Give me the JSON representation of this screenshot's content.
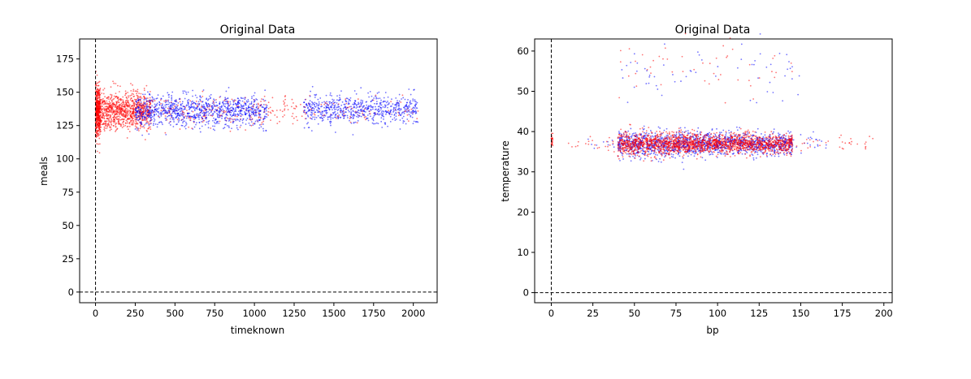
{
  "chart_data": [
    {
      "type": "scatter",
      "title": "Original Data",
      "xlabel": "timeknown",
      "ylabel": "meals",
      "xlim": [
        -100,
        2150
      ],
      "ylim": [
        -8,
        190
      ],
      "xticks": [
        "0",
        "250",
        "500",
        "750",
        "1000",
        "1250",
        "1500",
        "1750",
        "2000"
      ],
      "yticks": [
        "0",
        "25",
        "50",
        "75",
        "100",
        "125",
        "150",
        "175"
      ],
      "reference_lines": {
        "x": 0,
        "y": 0,
        "style": "dashed",
        "color": "#000000"
      },
      "series": [
        {
          "color": "#ff0000",
          "clusters": [
            {
              "x_range": [
                0,
                30
              ],
              "y_center": 136,
              "y_spread": 9,
              "count": 500
            },
            {
              "x_range": [
                30,
                350
              ],
              "y_center": 136,
              "y_spread": 7,
              "count": 900
            },
            {
              "x_range": [
                350,
                1100
              ],
              "y_center": 136,
              "y_spread": 6,
              "count": 200
            },
            {
              "x_range": [
                1100,
                1300
              ],
              "y_center": 136,
              "y_spread": 6,
              "count": 40
            },
            {
              "x_range": [
                1300,
                2030
              ],
              "y_center": 137,
              "y_spread": 5,
              "count": 80
            }
          ]
        },
        {
          "color": "#0000ff",
          "clusters": [
            {
              "x_range": [
                250,
                1080
              ],
              "y_center": 136,
              "y_spread": 6,
              "count": 1000
            },
            {
              "x_range": [
                1310,
                2030
              ],
              "y_center": 137,
              "y_spread": 6,
              "count": 650
            }
          ]
        }
      ]
    },
    {
      "type": "scatter",
      "title": "Original Data",
      "xlabel": "bp",
      "ylabel": "temperature",
      "xlim": [
        -10,
        205
      ],
      "ylim": [
        -2.5,
        63
      ],
      "xticks": [
        "0",
        "25",
        "50",
        "75",
        "100",
        "125",
        "150",
        "175",
        "200"
      ],
      "yticks": [
        "0",
        "10",
        "20",
        "30",
        "40",
        "50",
        "60"
      ],
      "reference_lines": {
        "x": 0,
        "y": 0,
        "style": "dashed",
        "color": "#000000"
      },
      "series": [
        {
          "color": "#0000ff",
          "clusters": [
            {
              "x_range": [
                40,
                90
              ],
              "y_center": 37,
              "y_spread": 1.6,
              "count": 700
            },
            {
              "x_range": [
                90,
                145
              ],
              "y_center": 37,
              "y_spread": 1.4,
              "count": 700
            },
            {
              "x_range": [
                20,
                170
              ],
              "y_center": 37,
              "y_spread": 1.2,
              "count": 100
            },
            {
              "x_range": [
                40,
                150
              ],
              "y_center": 55,
              "y_spread": 3.5,
              "count": 60
            }
          ]
        },
        {
          "color": "#ff0000",
          "clusters": [
            {
              "x_range": [
                40,
                90
              ],
              "y_center": 37,
              "y_spread": 1.4,
              "count": 900
            },
            {
              "x_range": [
                90,
                145
              ],
              "y_center": 37,
              "y_spread": 1.2,
              "count": 900
            },
            {
              "x_range": [
                10,
                195
              ],
              "y_center": 37,
              "y_spread": 1.0,
              "count": 120
            },
            {
              "x_range": [
                0,
                1
              ],
              "y_center": 37.5,
              "y_spread": 1.2,
              "count": 25
            },
            {
              "x_range": [
                40,
                145
              ],
              "y_center": 56,
              "y_spread": 3.5,
              "count": 50
            }
          ]
        }
      ]
    }
  ]
}
